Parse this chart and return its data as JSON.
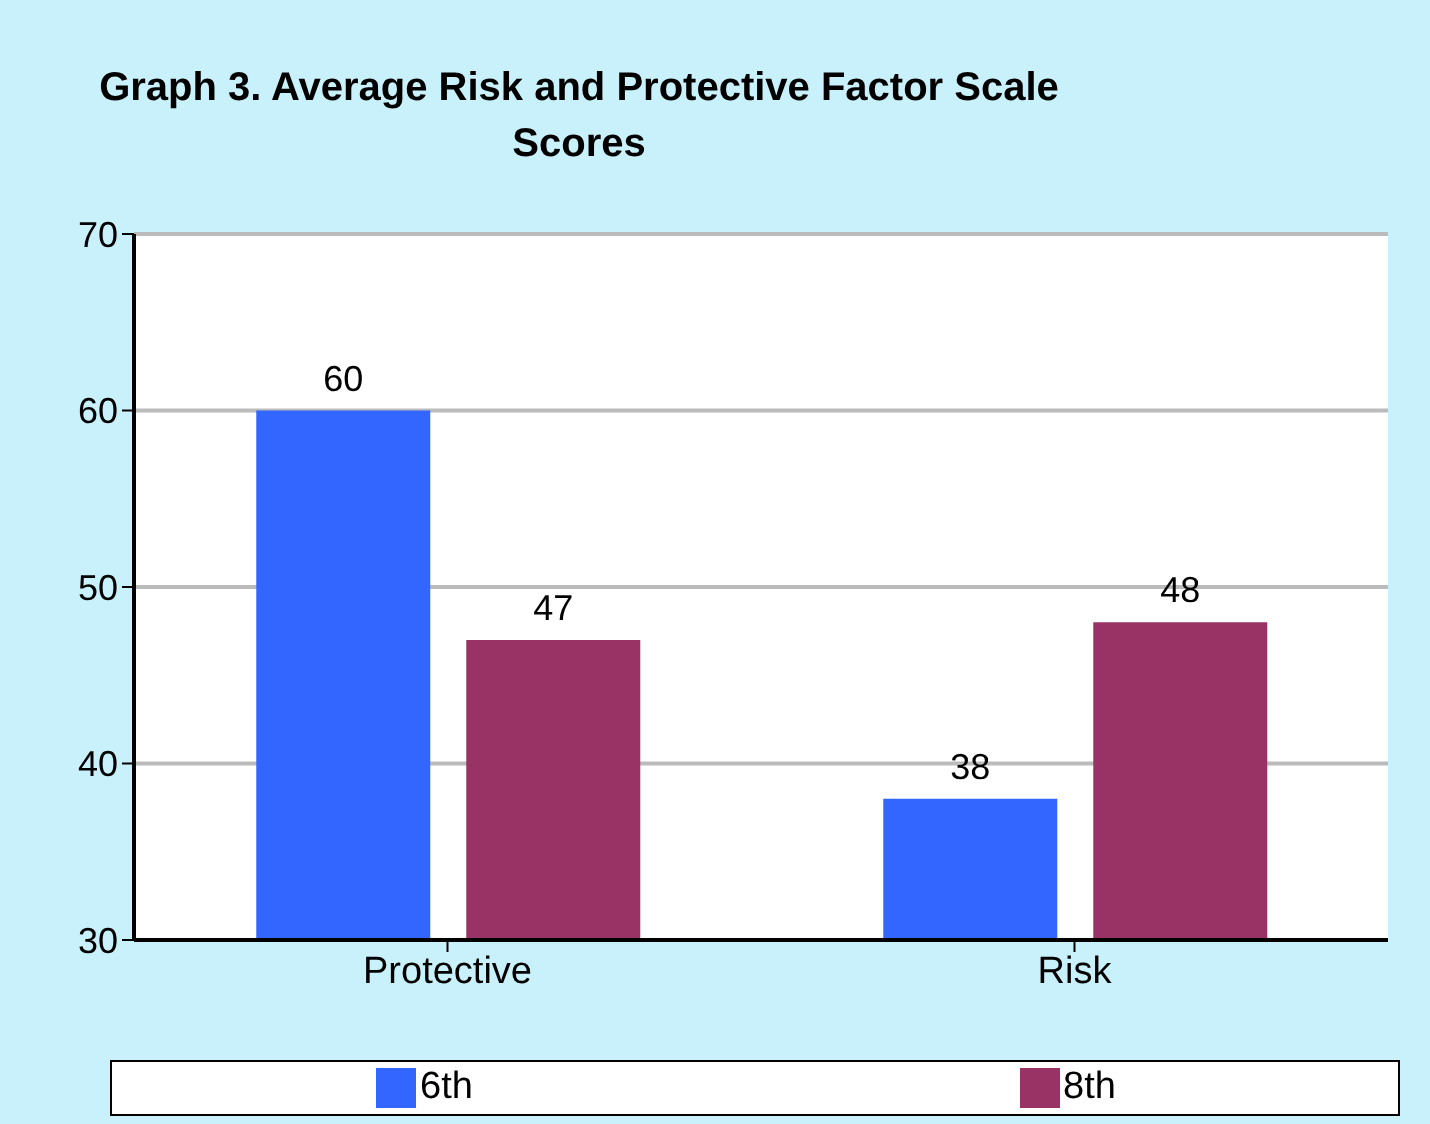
{
  "chart_data": {
    "type": "bar",
    "title": "Graph 3. Average Risk and Protective Factor Scale Scores",
    "categories": [
      "Protective",
      "Risk"
    ],
    "series": [
      {
        "name": "6th",
        "color": "#3366ff",
        "values": [
          60,
          38
        ]
      },
      {
        "name": "8th",
        "color": "#993366",
        "values": [
          47,
          48
        ]
      }
    ],
    "ylim": [
      30,
      70
    ],
    "yticks": [
      30,
      40,
      50,
      60,
      70
    ],
    "grid": "y",
    "data_labels": true,
    "legend": "bottom"
  }
}
